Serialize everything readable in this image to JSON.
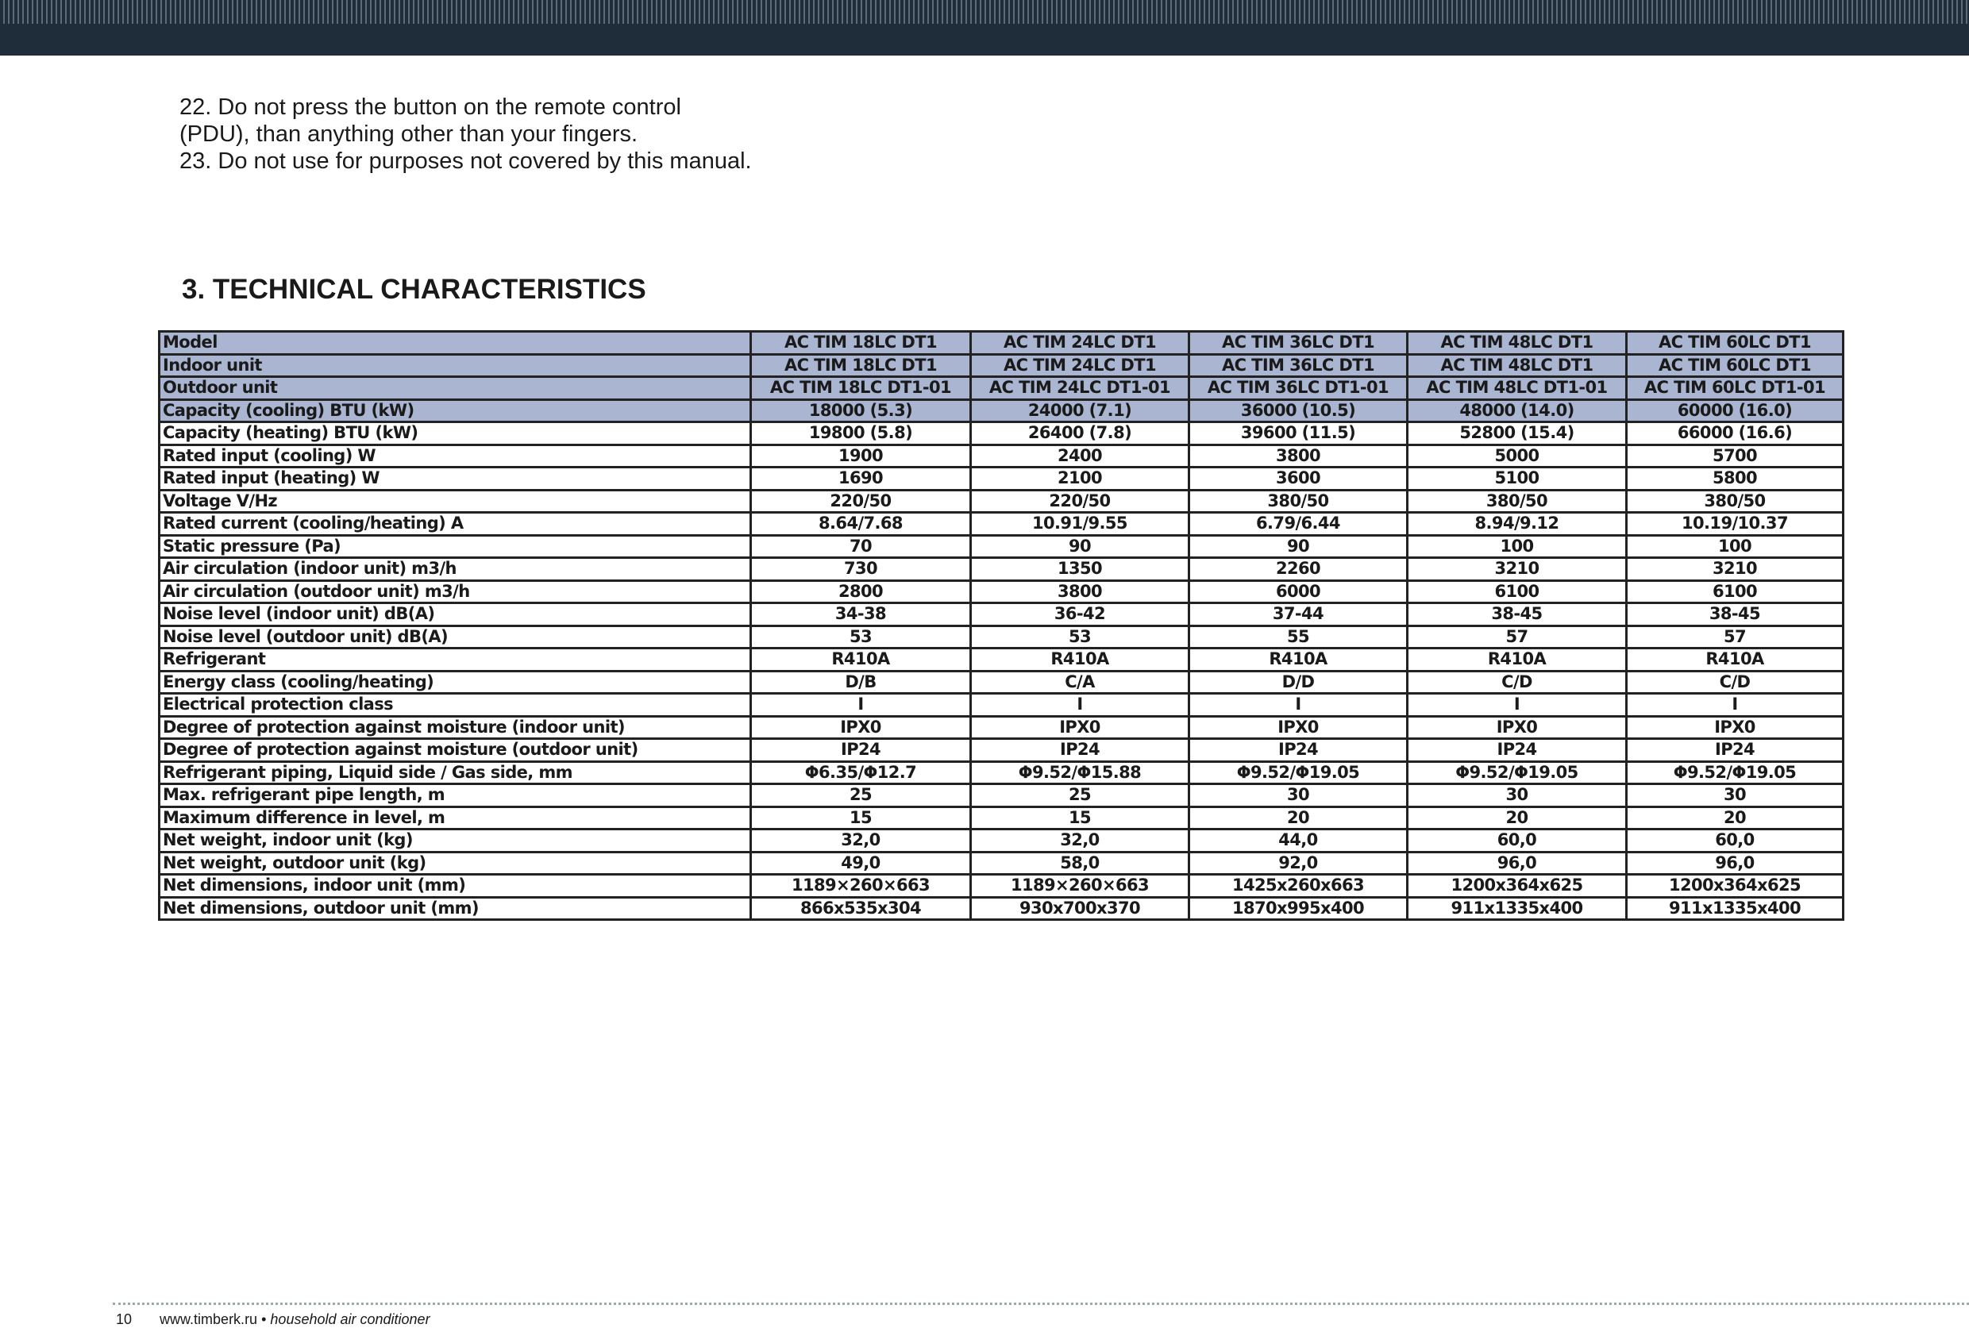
{
  "instructions": [
    "22. Do not press the button on the remote control",
    "(PDU), than anything other than your fingers.",
    "23. Do not use for purposes not covered by this manual."
  ],
  "section_title": "3. TECHNICAL CHARACTERISTICS",
  "table": {
    "header_rows": 4,
    "rows": [
      [
        "Model",
        "AC TIM 18LC DT1",
        "AC TIM 24LC DT1",
        "AC TIM 36LC DT1",
        "AC TIM 48LC DT1",
        "AC TIM 60LC DT1"
      ],
      [
        "Indoor unit",
        "AC TIM 18LC DT1",
        "AC TIM 24LC DT1",
        "AC TIM 36LC DT1",
        "AC TIM 48LC DT1",
        "AC TIM 60LC DT1"
      ],
      [
        "Outdoor unit",
        "AC TIM 18LC DT1-01",
        "AC TIM 24LC DT1-01",
        "AC TIM 36LC DT1-01",
        "AC TIM 48LC DT1-01",
        "AC TIM 60LC DT1-01"
      ],
      [
        "Capacity (cooling) BTU (kW)",
        "18000 (5.3)",
        "24000 (7.1)",
        "36000 (10.5)",
        "48000 (14.0)",
        "60000 (16.0)"
      ],
      [
        "Capacity (heating) BTU (kW)",
        "19800 (5.8)",
        "26400 (7.8)",
        "39600 (11.5)",
        "52800 (15.4)",
        "66000 (16.6)"
      ],
      [
        "Rated input (cooling) W",
        "1900",
        "2400",
        "3800",
        "5000",
        "5700"
      ],
      [
        "Rated input (heating) W",
        "1690",
        "2100",
        "3600",
        "5100",
        "5800"
      ],
      [
        "Voltage V/Hz",
        "220/50",
        "220/50",
        "380/50",
        "380/50",
        "380/50"
      ],
      [
        "Rated current (cooling/heating) A",
        "8.64/7.68",
        "10.91/9.55",
        "6.79/6.44",
        "8.94/9.12",
        "10.19/10.37"
      ],
      [
        "Static pressure (Pa)",
        "70",
        "90",
        "90",
        "100",
        "100"
      ],
      [
        "Air circulation (indoor unit) m3/h",
        "730",
        "1350",
        "2260",
        "3210",
        "3210"
      ],
      [
        "Air circulation (outdoor unit) m3/h",
        "2800",
        "3800",
        "6000",
        "6100",
        "6100"
      ],
      [
        "Noise level (indoor unit) dB(A)",
        "34-38",
        "36-42",
        "37-44",
        "38-45",
        "38-45"
      ],
      [
        "Noise level (outdoor unit) dB(A)",
        "53",
        "53",
        "55",
        "57",
        "57"
      ],
      [
        "Refrigerant",
        "R410A",
        "R410A",
        "R410A",
        "R410A",
        "R410A"
      ],
      [
        "Energy class (cooling/heating)",
        "D/B",
        "C/A",
        "D/D",
        "C/D",
        "C/D"
      ],
      [
        "Electrical protection class",
        "I",
        "I",
        "I",
        "I",
        "I"
      ],
      [
        "Degree of protection against moisture (indoor unit)",
        "IPX0",
        "IPX0",
        "IPX0",
        "IPX0",
        "IPX0"
      ],
      [
        "Degree of protection against moisture (outdoor unit)",
        "IP24",
        "IP24",
        "IP24",
        "IP24",
        "IP24"
      ],
      [
        "Refrigerant piping, Liquid side / Gas side, mm",
        "Φ6.35/Φ12.7",
        "Φ9.52/Φ15.88",
        "Φ9.52/Φ19.05",
        "Φ9.52/Φ19.05",
        "Φ9.52/Φ19.05"
      ],
      [
        "Max. refrigerant pipe length, m",
        "25",
        "25",
        "30",
        "30",
        "30"
      ],
      [
        "Maximum difference in level, m",
        "15",
        "15",
        "20",
        "20",
        "20"
      ],
      [
        "Net weight, indoor unit (kg)",
        "32,0",
        "32,0",
        "44,0",
        "60,0",
        "60,0"
      ],
      [
        "Net weight, outdoor unit (kg)",
        "49,0",
        "58,0",
        "92,0",
        "96,0",
        "96,0"
      ],
      [
        "Net dimensions, indoor unit (mm)",
        "1189×260×663",
        "1189×260×663",
        "1425x260x663",
        "1200x364x625",
        "1200x364x625"
      ],
      [
        "Net dimensions, outdoor unit (mm)",
        "866x535x304",
        "930x700x370",
        "1870x995x400",
        "911x1335x400",
        "911x1335x400"
      ]
    ]
  },
  "footer": {
    "page": "10",
    "site": "www.timberk.ru",
    "separator": "•",
    "tagline": "household air conditioner"
  }
}
